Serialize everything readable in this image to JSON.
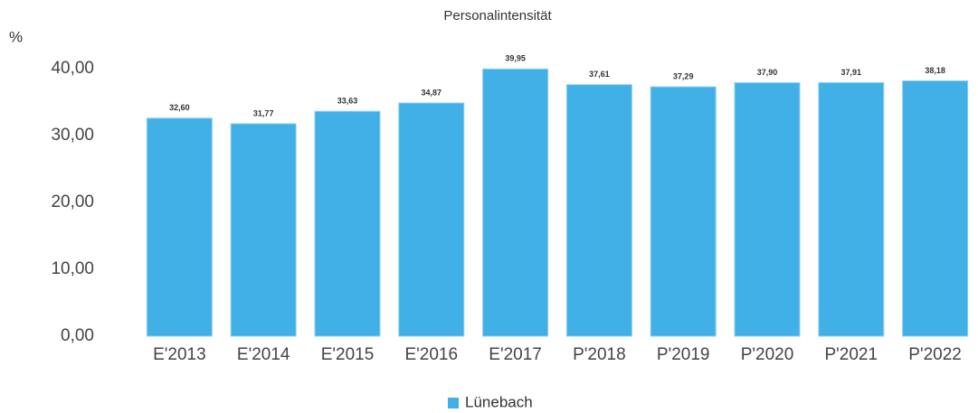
{
  "chart_data": {
    "type": "bar",
    "title": "Personalintensität",
    "y_axis_label": "%",
    "categories": [
      "E'2013",
      "E'2014",
      "E'2015",
      "E'2016",
      "E'2017",
      "P'2018",
      "P'2019",
      "P'2020",
      "P'2021",
      "P'2022"
    ],
    "series": [
      {
        "name": "Lünebach",
        "color": "#41b0e6",
        "values": [
          32.6,
          31.77,
          33.63,
          34.87,
          39.95,
          37.61,
          37.29,
          37.9,
          37.91,
          38.18
        ],
        "value_labels": [
          "32,60",
          "31,77",
          "33,63",
          "34,87",
          "39,95",
          "37,61",
          "37,29",
          "37,90",
          "37,91",
          "38,18"
        ]
      }
    ],
    "ylim": [
      0,
      40
    ],
    "yticks": [
      {
        "value": 0,
        "label": "0,00"
      },
      {
        "value": 10,
        "label": "10,00"
      },
      {
        "value": 20,
        "label": "20,00"
      },
      {
        "value": 30,
        "label": "30,00"
      },
      {
        "value": 40,
        "label": "40,00"
      }
    ],
    "grid": false,
    "legend": "bottom"
  }
}
